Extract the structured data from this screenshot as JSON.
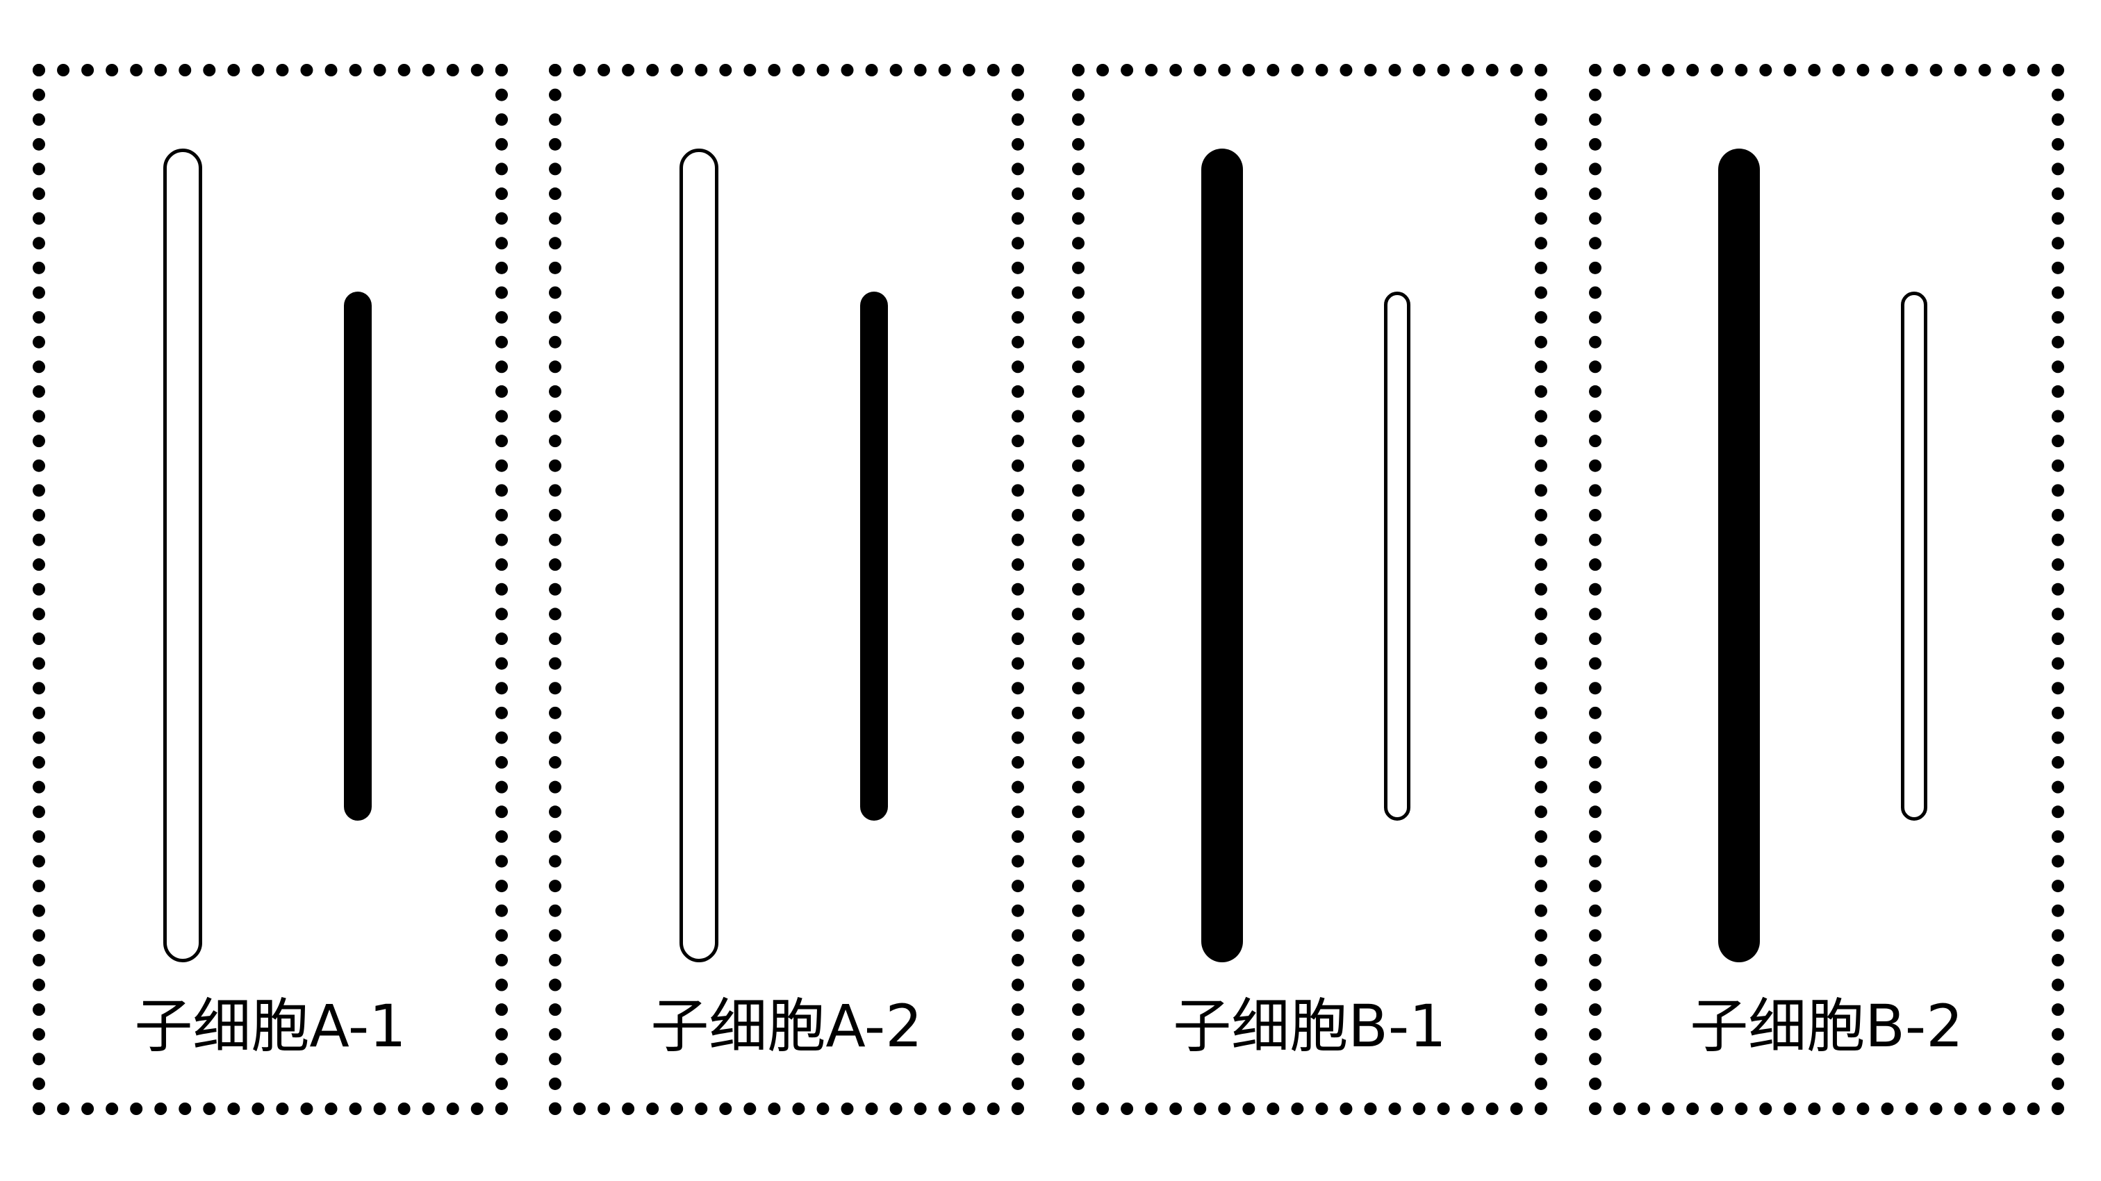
{
  "colors": {
    "ink": "#000000",
    "background": "#ffffff"
  },
  "cells": [
    {
      "label": "子细胞A-1",
      "long_chromosome": "hollow",
      "short_chromosome": "solid"
    },
    {
      "label": "子细胞A-2",
      "long_chromosome": "hollow",
      "short_chromosome": "solid"
    },
    {
      "label": "子细胞B-1",
      "long_chromosome": "solid",
      "short_chromosome": "hollow"
    },
    {
      "label": "子细胞B-2",
      "long_chromosome": "solid",
      "short_chromosome": "hollow"
    }
  ]
}
